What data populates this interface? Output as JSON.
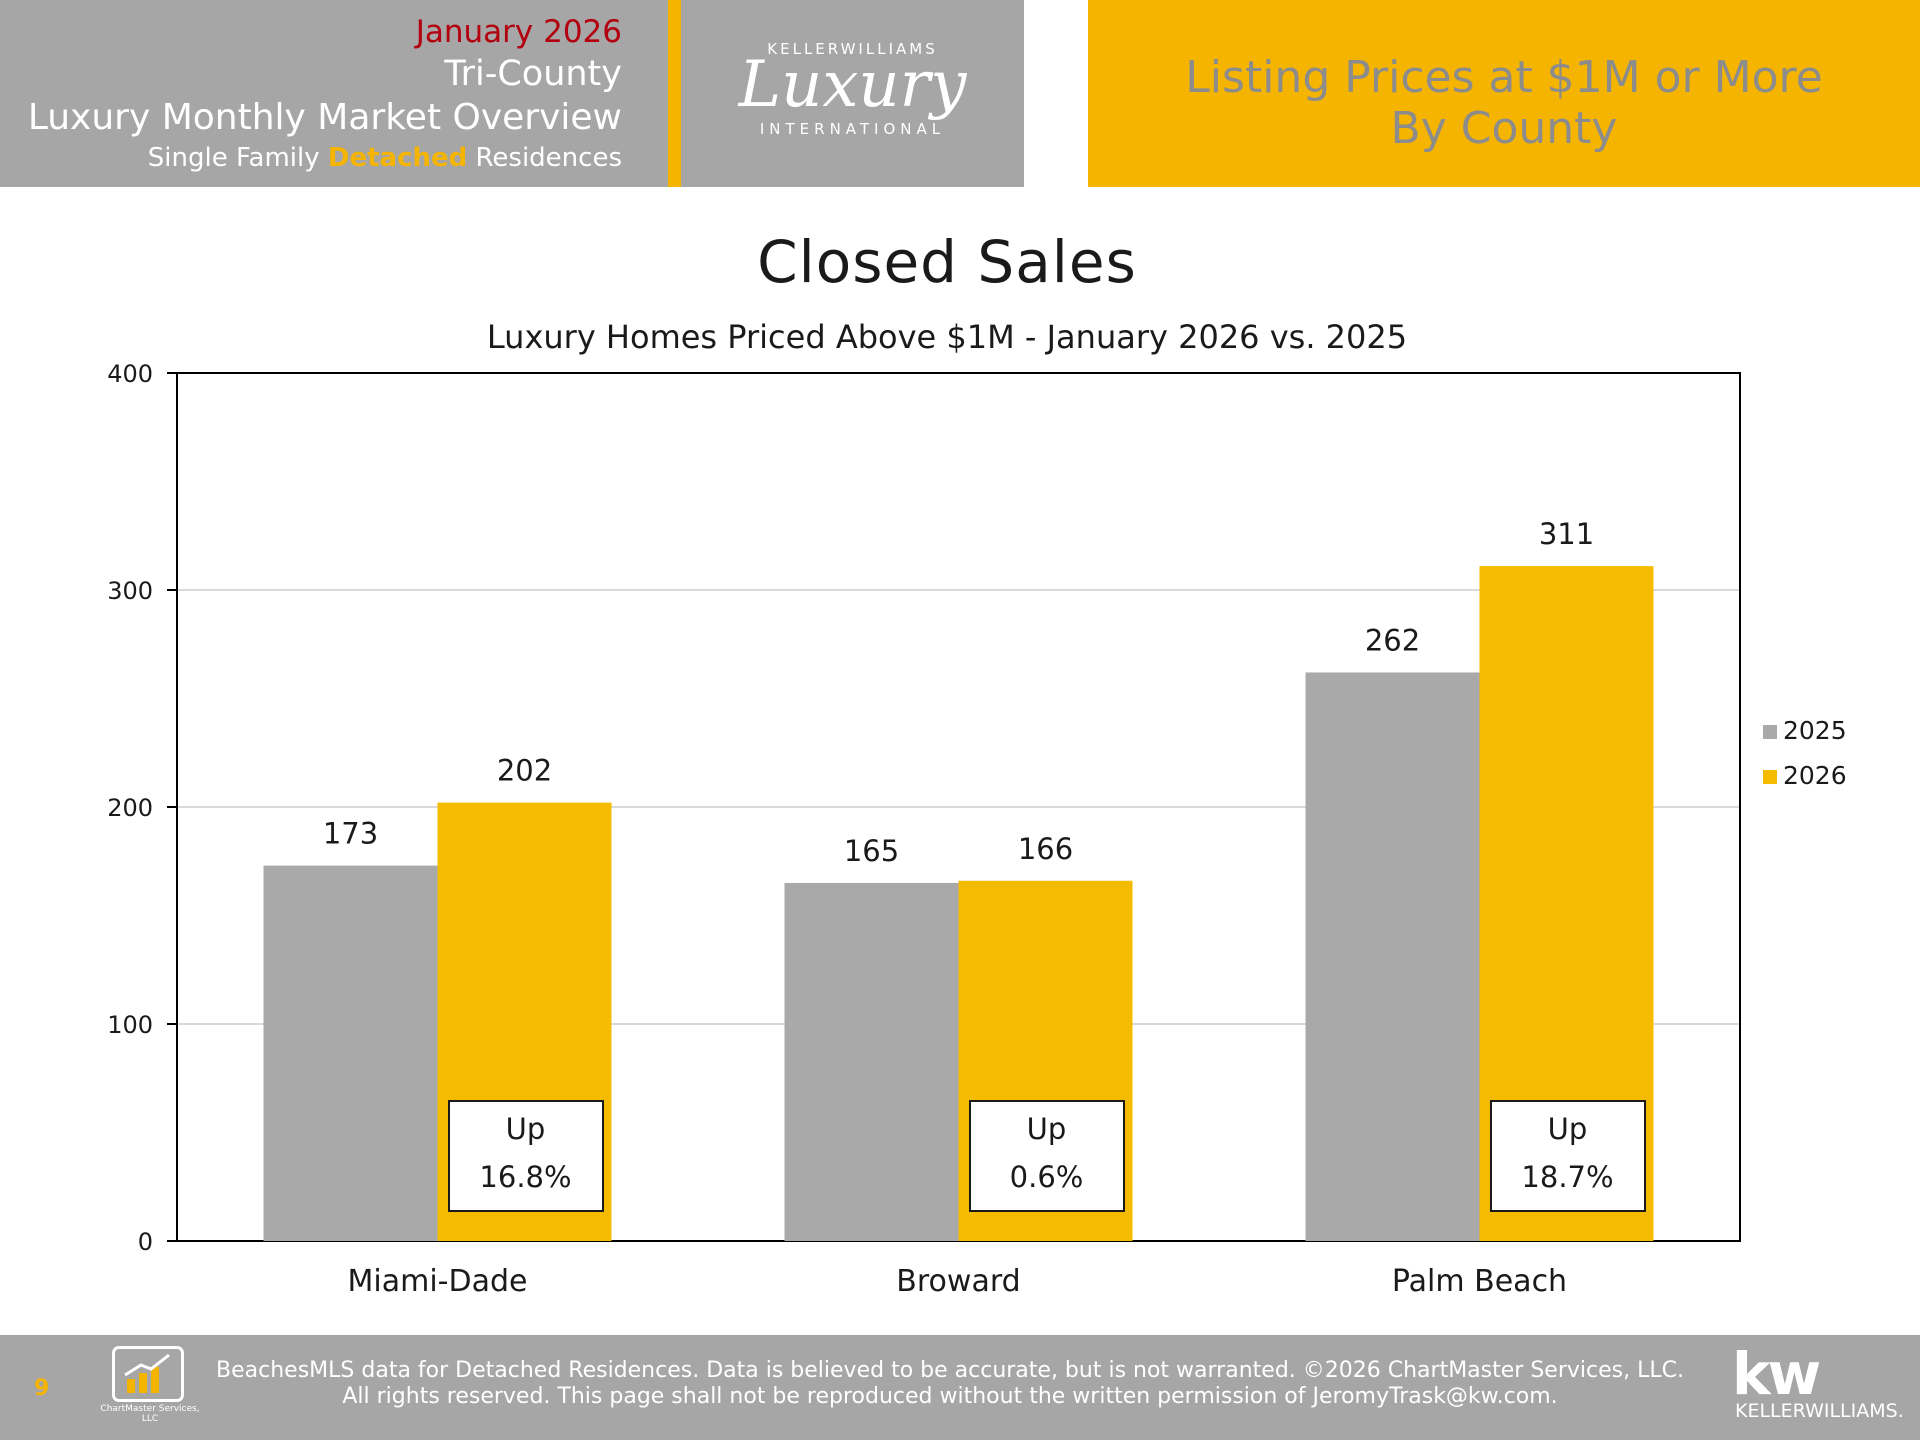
{
  "header": {
    "month": "January 2026",
    "region": "Tri-County",
    "report": "Luxury Monthly Market Overview",
    "segment_pre": "Single Family ",
    "segment_hl": "Detached",
    "segment_post": " Residences",
    "logo_top": "KELLERWILLIAMS",
    "logo_script": "Luxury",
    "logo_bottom": "INTERNATIONAL",
    "right_line1": "Listing Prices at $1M or More",
    "right_line2": "By County"
  },
  "colors": {
    "series_2025": "#a9a9a9",
    "series_2026": "#f5bb00",
    "accent": "#f4b400",
    "header_grey": "#a6a6a6"
  },
  "chart_data": {
    "type": "bar",
    "title": "Closed Sales",
    "subtitle": "Luxury Homes Priced Above $1M - January 2026 vs. 2025",
    "categories": [
      "Miami-Dade",
      "Broward",
      "Palm Beach"
    ],
    "series": [
      {
        "name": "2025",
        "values": [
          173,
          165,
          262
        ]
      },
      {
        "name": "2026",
        "values": [
          202,
          166,
          311
        ]
      }
    ],
    "ylim": [
      0,
      400
    ],
    "yticks": [
      0,
      100,
      200,
      300,
      400
    ],
    "grid": true,
    "legend": "right",
    "annotations": [
      {
        "label": "Up",
        "value": "16.8%"
      },
      {
        "label": "Up",
        "value": "0.6%"
      },
      {
        "label": "Up",
        "value": "18.7%"
      }
    ]
  },
  "footer": {
    "page": "9",
    "logo_text": "ChartMaster Services, LLC",
    "line1": "BeachesMLS data for Detached Residences.  Data is believed to be accurate, but is not warranted.   ©2026  ChartMaster Services, LLC.",
    "line2": "All rights reserved. This page shall not be reproduced without the written permission of JeromyTrask@kw.com.",
    "kw_logo": "kw",
    "kw_text": "KELLERWILLIAMS."
  }
}
